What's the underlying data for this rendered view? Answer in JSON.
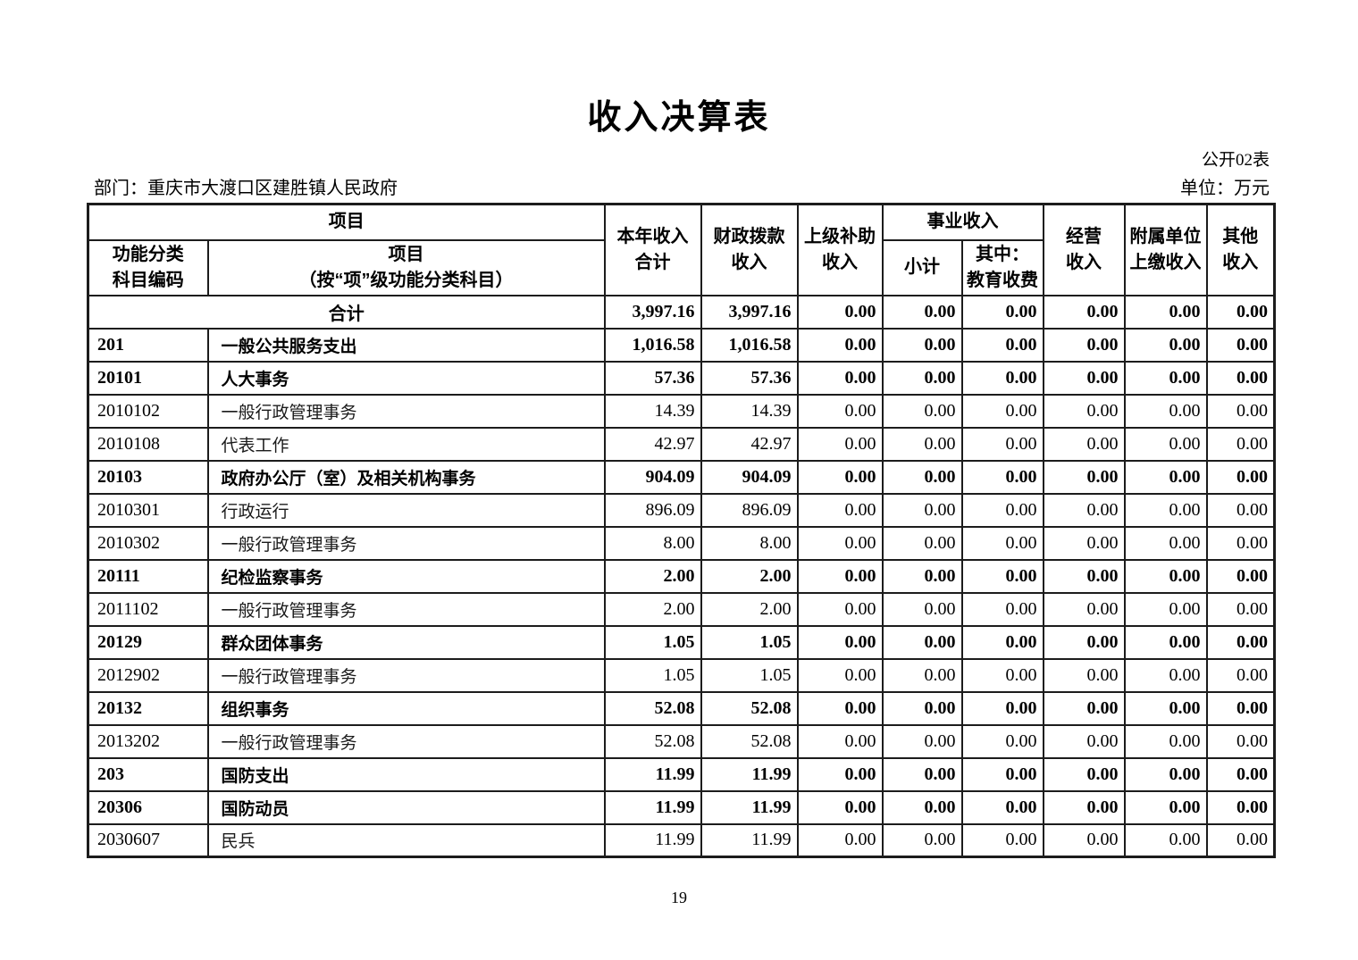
{
  "page": {
    "title": "收入决算表",
    "table_code": "公开02表",
    "department": "部门：重庆市大渡口区建胜镇人民政府",
    "unit": "单位：万元",
    "page_number": "19"
  },
  "table": {
    "header": {
      "project_group": "项目",
      "code_col": "功能分类\n科目编码",
      "name_col": "项目\n（按“项”级功能分类科目）",
      "year_total": "本年收入\n合计",
      "fiscal": "财政拨款\n收入",
      "subsidy": "上级补助\n收入",
      "business_group": "事业收入",
      "business_subtotal": "小计",
      "business_edu": "其中：\n教育收费",
      "operating": "经营\n收入",
      "affiliated": "附属单位\n上缴收入",
      "other": "其他\n收入"
    },
    "rows": [
      {
        "code": "",
        "name": "合计",
        "merged": true,
        "bold": true,
        "values": [
          "3,997.16",
          "3,997.16",
          "0.00",
          "0.00",
          "0.00",
          "0.00",
          "0.00",
          "0.00"
        ]
      },
      {
        "code": "201",
        "name": "一般公共服务支出",
        "merged": false,
        "bold": true,
        "values": [
          "1,016.58",
          "1,016.58",
          "0.00",
          "0.00",
          "0.00",
          "0.00",
          "0.00",
          "0.00"
        ]
      },
      {
        "code": "20101",
        "name": "人大事务",
        "merged": false,
        "bold": true,
        "values": [
          "57.36",
          "57.36",
          "0.00",
          "0.00",
          "0.00",
          "0.00",
          "0.00",
          "0.00"
        ]
      },
      {
        "code": "2010102",
        "name": "一般行政管理事务",
        "merged": false,
        "bold": false,
        "values": [
          "14.39",
          "14.39",
          "0.00",
          "0.00",
          "0.00",
          "0.00",
          "0.00",
          "0.00"
        ]
      },
      {
        "code": "2010108",
        "name": "代表工作",
        "merged": false,
        "bold": false,
        "values": [
          "42.97",
          "42.97",
          "0.00",
          "0.00",
          "0.00",
          "0.00",
          "0.00",
          "0.00"
        ]
      },
      {
        "code": "20103",
        "name": "政府办公厅（室）及相关机构事务",
        "merged": false,
        "bold": true,
        "values": [
          "904.09",
          "904.09",
          "0.00",
          "0.00",
          "0.00",
          "0.00",
          "0.00",
          "0.00"
        ]
      },
      {
        "code": "2010301",
        "name": "行政运行",
        "merged": false,
        "bold": false,
        "values": [
          "896.09",
          "896.09",
          "0.00",
          "0.00",
          "0.00",
          "0.00",
          "0.00",
          "0.00"
        ]
      },
      {
        "code": "2010302",
        "name": "一般行政管理事务",
        "merged": false,
        "bold": false,
        "values": [
          "8.00",
          "8.00",
          "0.00",
          "0.00",
          "0.00",
          "0.00",
          "0.00",
          "0.00"
        ]
      },
      {
        "code": "20111",
        "name": "纪检监察事务",
        "merged": false,
        "bold": true,
        "values": [
          "2.00",
          "2.00",
          "0.00",
          "0.00",
          "0.00",
          "0.00",
          "0.00",
          "0.00"
        ]
      },
      {
        "code": "2011102",
        "name": "一般行政管理事务",
        "merged": false,
        "bold": false,
        "values": [
          "2.00",
          "2.00",
          "0.00",
          "0.00",
          "0.00",
          "0.00",
          "0.00",
          "0.00"
        ]
      },
      {
        "code": "20129",
        "name": "群众团体事务",
        "merged": false,
        "bold": true,
        "values": [
          "1.05",
          "1.05",
          "0.00",
          "0.00",
          "0.00",
          "0.00",
          "0.00",
          "0.00"
        ]
      },
      {
        "code": "2012902",
        "name": "一般行政管理事务",
        "merged": false,
        "bold": false,
        "values": [
          "1.05",
          "1.05",
          "0.00",
          "0.00",
          "0.00",
          "0.00",
          "0.00",
          "0.00"
        ]
      },
      {
        "code": "20132",
        "name": "组织事务",
        "merged": false,
        "bold": true,
        "values": [
          "52.08",
          "52.08",
          "0.00",
          "0.00",
          "0.00",
          "0.00",
          "0.00",
          "0.00"
        ]
      },
      {
        "code": "2013202",
        "name": "一般行政管理事务",
        "merged": false,
        "bold": false,
        "values": [
          "52.08",
          "52.08",
          "0.00",
          "0.00",
          "0.00",
          "0.00",
          "0.00",
          "0.00"
        ]
      },
      {
        "code": "203",
        "name": "国防支出",
        "merged": false,
        "bold": true,
        "values": [
          "11.99",
          "11.99",
          "0.00",
          "0.00",
          "0.00",
          "0.00",
          "0.00",
          "0.00"
        ]
      },
      {
        "code": "20306",
        "name": "国防动员",
        "merged": false,
        "bold": true,
        "values": [
          "11.99",
          "11.99",
          "0.00",
          "0.00",
          "0.00",
          "0.00",
          "0.00",
          "0.00"
        ]
      },
      {
        "code": "2030607",
        "name": "民兵",
        "merged": false,
        "bold": false,
        "values": [
          "11.99",
          "11.99",
          "0.00",
          "0.00",
          "0.00",
          "0.00",
          "0.00",
          "0.00"
        ]
      }
    ]
  }
}
